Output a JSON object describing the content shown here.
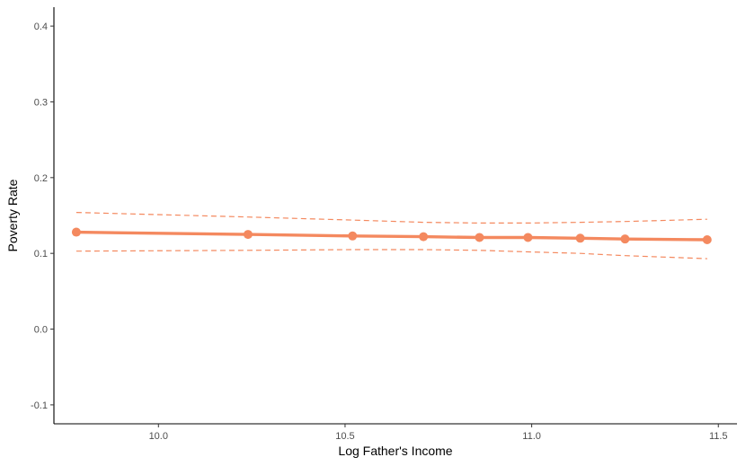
{
  "chart_data": {
    "type": "line",
    "title": "",
    "xlabel": "Log Father's Income",
    "ylabel": "Poverty Rate",
    "xlim": [
      9.72,
      11.55
    ],
    "ylim": [
      -0.125,
      0.425
    ],
    "x_ticks": [
      10.0,
      10.5,
      11.0,
      11.5
    ],
    "x_tick_labels": [
      "10.0",
      "10.5",
      "11.0",
      "11.5"
    ],
    "y_ticks": [
      -0.1,
      0.0,
      0.1,
      0.2,
      0.3,
      0.4
    ],
    "y_tick_labels": [
      "-0.1",
      "0.0",
      "0.1",
      "0.2",
      "0.3",
      "0.4"
    ],
    "grid": false,
    "legend": "none",
    "x": [
      9.78,
      10.24,
      10.52,
      10.71,
      10.86,
      10.99,
      11.13,
      11.25,
      11.47
    ],
    "series": [
      {
        "role": "estimate",
        "style": "solid-with-points",
        "color": "#F4895F",
        "values": [
          0.128,
          0.125,
          0.123,
          0.122,
          0.121,
          0.121,
          0.12,
          0.119,
          0.118
        ]
      },
      {
        "role": "upper-bound",
        "style": "dashed",
        "color": "#F4895F",
        "values": [
          0.154,
          0.148,
          0.144,
          0.141,
          0.14,
          0.14,
          0.141,
          0.142,
          0.145
        ]
      },
      {
        "role": "lower-bound",
        "style": "dashed",
        "color": "#F4895F",
        "values": [
          0.103,
          0.104,
          0.105,
          0.105,
          0.104,
          0.102,
          0.1,
          0.097,
          0.093
        ]
      }
    ]
  }
}
